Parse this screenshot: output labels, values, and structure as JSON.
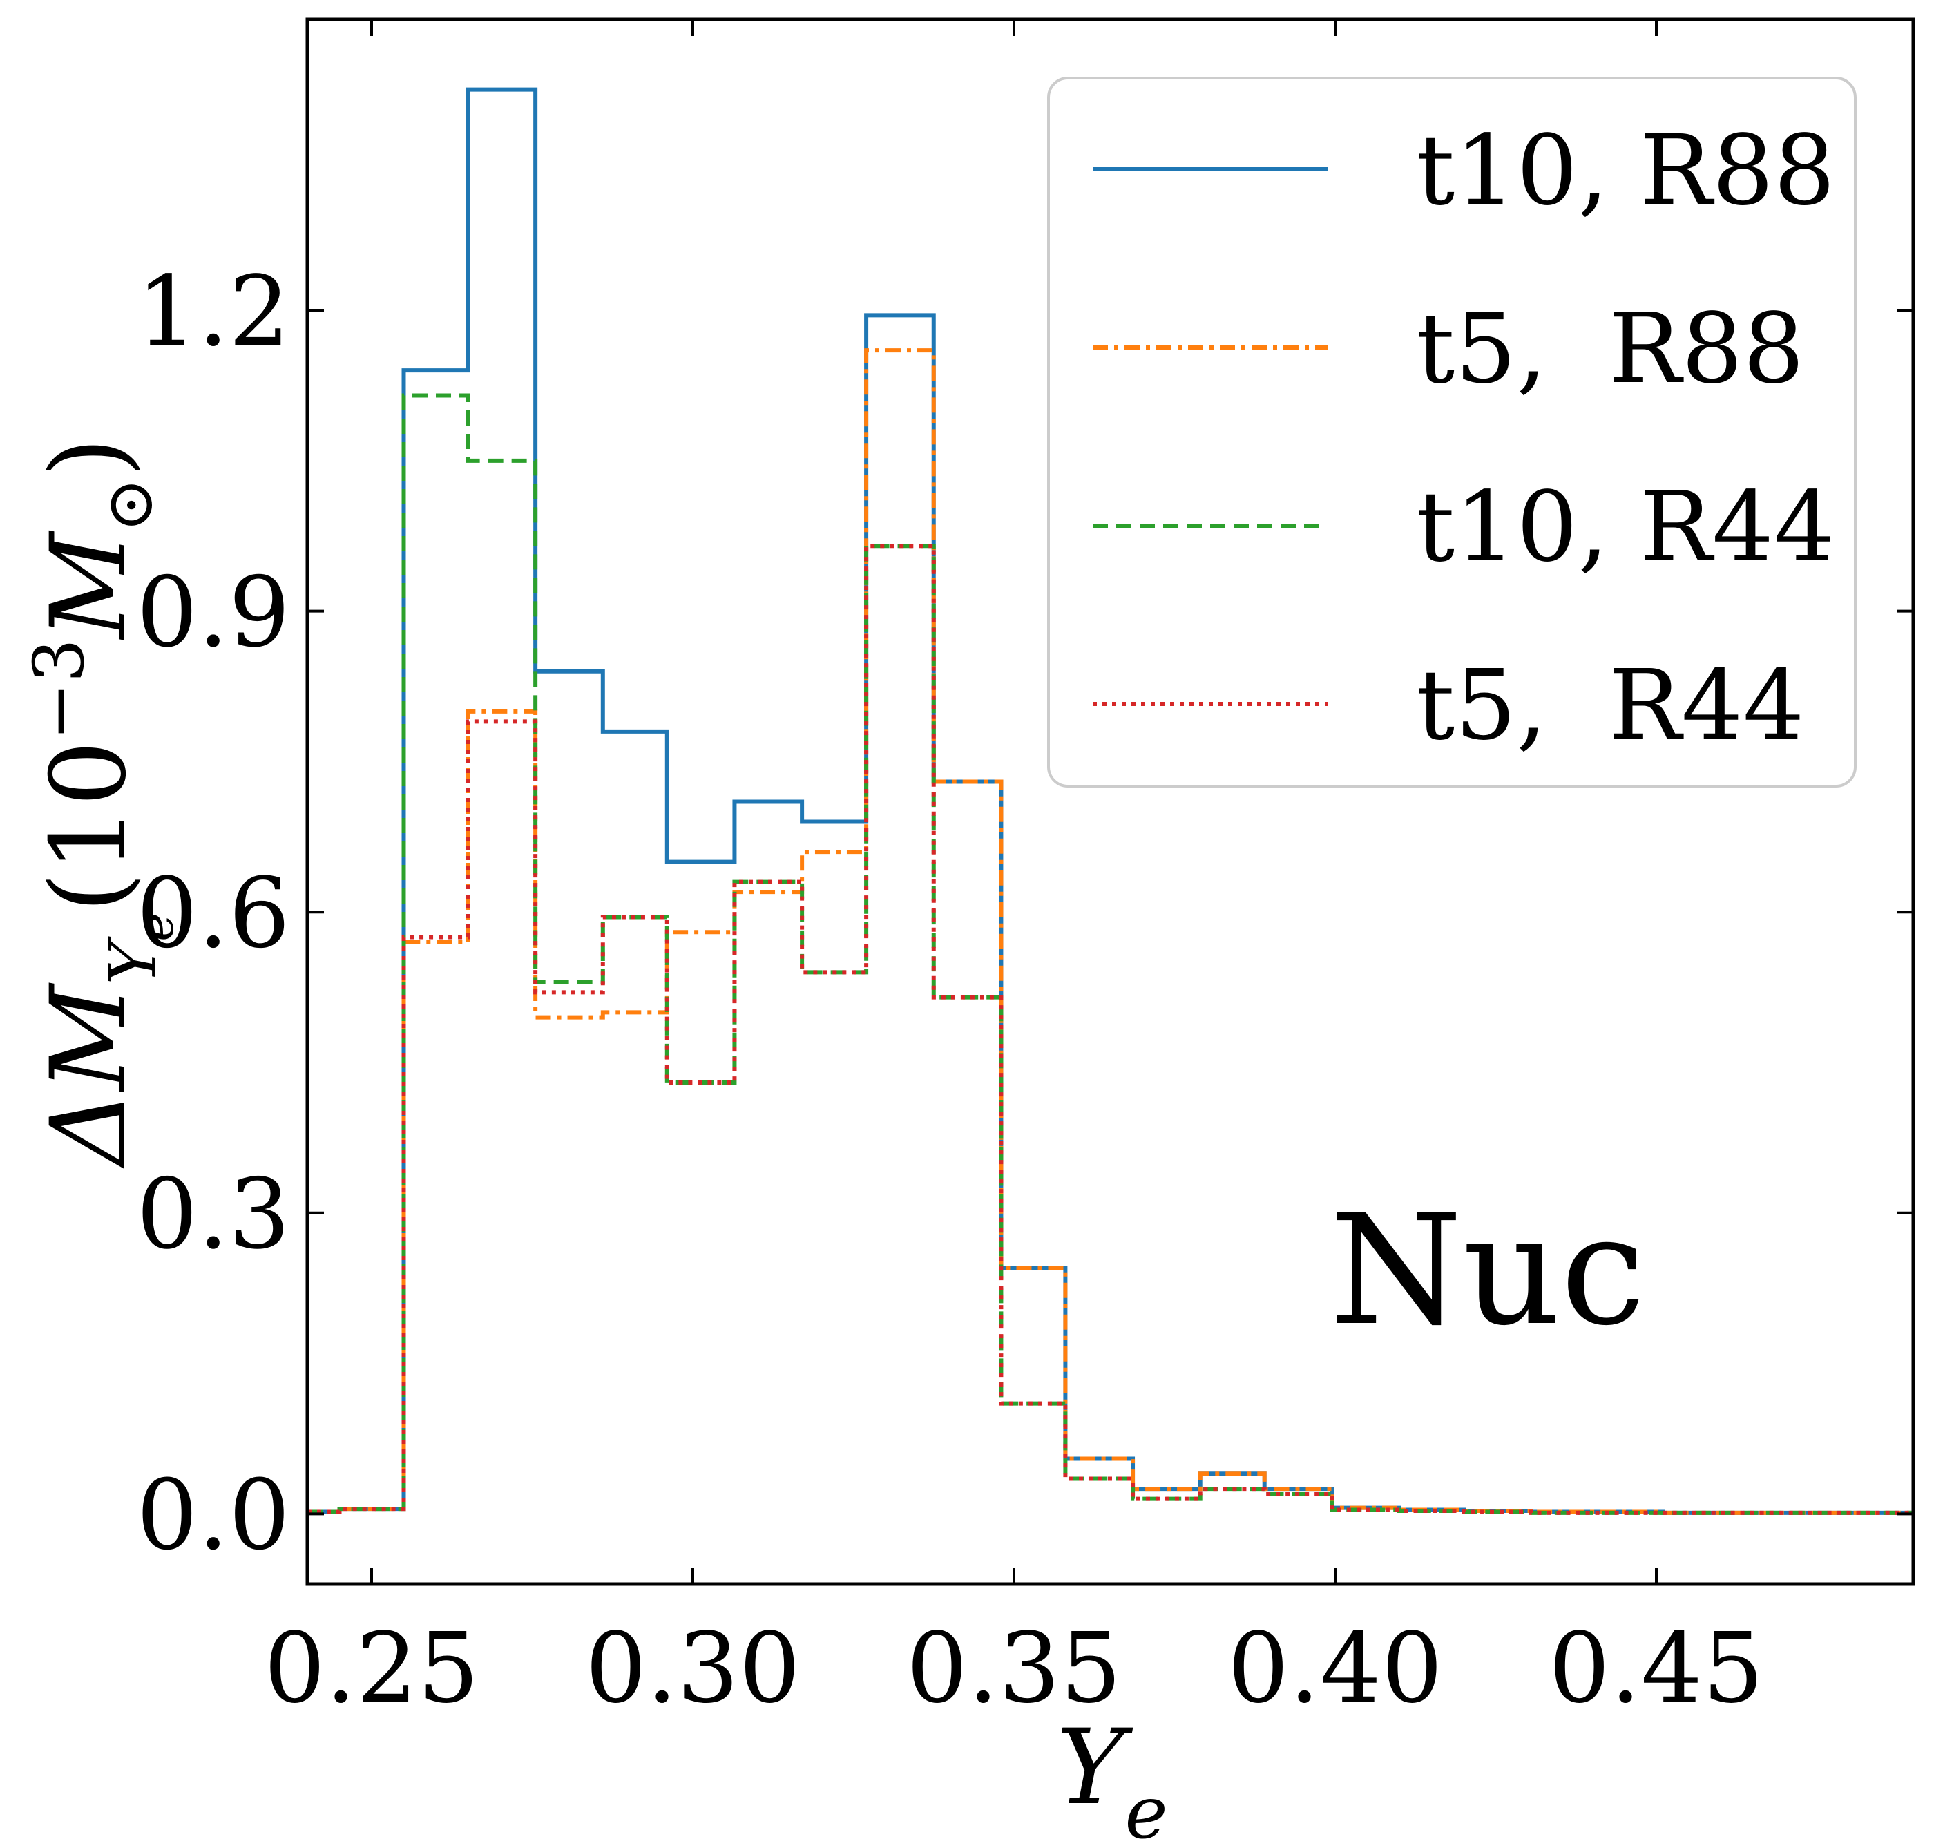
{
  "chart_data": {
    "type": "line",
    "xlabel": "Y_e",
    "ylabel": "ΔM_{Y_e}(10^{-3}M_⊙)",
    "xlim": [
      0.24,
      0.49
    ],
    "ylim": [
      -0.07,
      1.49
    ],
    "xticks": [
      0.25,
      0.3,
      0.35,
      0.4,
      0.45
    ],
    "xtick_labels": [
      "0.25",
      "0.30",
      "0.35",
      "0.40",
      "0.45"
    ],
    "yticks": [
      0.0,
      0.3,
      0.6,
      0.9,
      1.2
    ],
    "ytick_labels": [
      "0.0",
      "0.3",
      "0.6",
      "0.9",
      "1.2"
    ],
    "grid": false,
    "legend_position": "top-right",
    "bin_edges": [
      0.24,
      0.245,
      0.255,
      0.265,
      0.2755,
      0.286,
      0.296,
      0.3065,
      0.317,
      0.327,
      0.3375,
      0.348,
      0.358,
      0.3685,
      0.379,
      0.389,
      0.3995,
      0.41,
      0.42,
      0.4305,
      0.441,
      0.451,
      0.4615,
      0.472,
      0.482,
      0.49
    ],
    "series": [
      {
        "name": "t10, R88",
        "color": "#1f77b4",
        "dash": "solid",
        "values": [
          0.002,
          0.005,
          1.14,
          1.42,
          0.84,
          0.78,
          0.65,
          0.71,
          0.69,
          1.195,
          0.73,
          0.245,
          0.055,
          0.025,
          0.04,
          0.025,
          0.006,
          0.004,
          0.003,
          0.002,
          0.002,
          0.001,
          0.001,
          0.001,
          0.001
        ]
      },
      {
        "name": "t5,  R88",
        "color": "#ff7f0e",
        "dash": "dashdot",
        "values": [
          0.002,
          0.005,
          0.57,
          0.8,
          0.495,
          0.5,
          0.58,
          0.62,
          0.66,
          1.16,
          0.73,
          0.245,
          0.055,
          0.025,
          0.04,
          0.025,
          0.006,
          0.004,
          0.003,
          0.002,
          0.002,
          0.001,
          0.001,
          0.001,
          0.001
        ]
      },
      {
        "name": "t10, R44",
        "color": "#2ca02c",
        "dash": "dashed",
        "values": [
          0.002,
          0.005,
          1.115,
          1.05,
          0.53,
          0.595,
          0.43,
          0.63,
          0.54,
          0.965,
          0.515,
          0.11,
          0.035,
          0.015,
          0.025,
          0.02,
          0.004,
          0.003,
          0.002,
          0.001,
          0.001,
          0.001,
          0.001,
          0.001,
          0.001
        ]
      },
      {
        "name": "t5,  R44",
        "color": "#d62728",
        "dash": "dotted",
        "values": [
          0.002,
          0.005,
          0.575,
          0.79,
          0.52,
          0.595,
          0.43,
          0.63,
          0.54,
          0.965,
          0.515,
          0.11,
          0.035,
          0.015,
          0.025,
          0.02,
          0.004,
          0.003,
          0.002,
          0.001,
          0.001,
          0.001,
          0.001,
          0.001,
          0.001
        ]
      }
    ],
    "annotations": [
      "Nuc"
    ]
  }
}
